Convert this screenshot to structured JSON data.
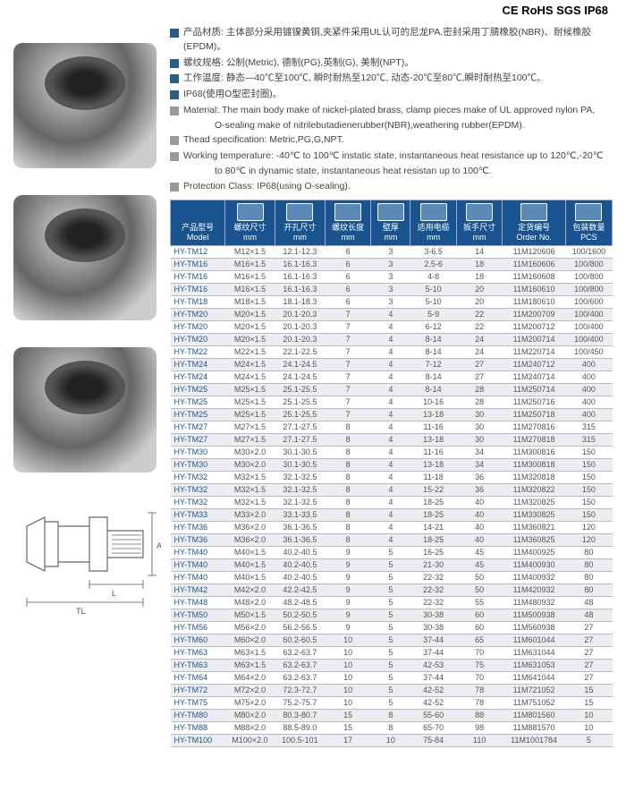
{
  "certifications": "CE  RoHS  SGS  IP68",
  "specs_cn": [
    "产品材质: 主体部分采用镀镍黄铜,夹紧件采用UL认可的尼龙PA,密封采用丁腈橡胶(NBR)、耐候橡胶(EPDM)。",
    "螺纹规格: 公制(Metric), 德制(PG),英制(G), 美制(NPT)。",
    "工作温度: 静态—40℃至100℃, 瞬时耐热至120℃, 动态-20℃至80℃,瞬时耐热至100℃。",
    "IP68(使用O型密封圈)。"
  ],
  "specs_en": [
    {
      "label": "Material:",
      "text": "The main body make of nickel-plated brass, clamp pieces make of UL approved nylon PA,",
      "cont": "O-sealing make of nitrilebutadienerubber(NBR),weathering rubber(EPDM)."
    },
    {
      "label": "Thead specification:",
      "text": "Metric,PG,G,NPT."
    },
    {
      "label": "Working temperature:",
      "text": "-40℃ to 100℃ instatic state, instantaneous heat resistance up to 120℃,-20℃",
      "cont": "to 80℃ in dynamic state, instantaneous heat resistan up to 100℃."
    },
    {
      "label": "Protection Class:",
      "text": "IP68(using O-sealing)."
    }
  ],
  "headers": [
    {
      "cn": "产品型号",
      "en": "Model"
    },
    {
      "cn": "螺纹尺寸",
      "en": "mm"
    },
    {
      "cn": "开孔尺寸",
      "en": "mm"
    },
    {
      "cn": "螺纹长度",
      "en": "mm"
    },
    {
      "cn": "壁厚",
      "en": "mm"
    },
    {
      "cn": "适用电缆",
      "en": "mm"
    },
    {
      "cn": "扳手尺寸",
      "en": "mm"
    },
    {
      "cn": "定货编号",
      "en": "Order No."
    },
    {
      "cn": "包装数量",
      "en": "PCS"
    }
  ],
  "rows": [
    [
      "HY-TM12",
      "M12×1.5",
      "12.1-12.3",
      "6",
      "3",
      "3-6.5",
      "14",
      "11M120606",
      "100/1600"
    ],
    [
      "HY-TM16",
      "M16×1.5",
      "16.1-16.3",
      "6",
      "3",
      "2.5-6",
      "18",
      "11M160606",
      "100/800"
    ],
    [
      "HY-TM16",
      "M16×1.5",
      "16.1-16.3",
      "6",
      "3",
      "4-8",
      "18",
      "11M160608",
      "100/800"
    ],
    [
      "HY-TM16",
      "M16×1.5",
      "16.1-16.3",
      "6",
      "3",
      "5-10",
      "20",
      "11M160610",
      "100/800"
    ],
    [
      "HY-TM18",
      "M18×1.5",
      "18.1-18.3",
      "6",
      "3",
      "5-10",
      "20",
      "11M180610",
      "100/600"
    ],
    [
      "HY-TM20",
      "M20×1.5",
      "20.1-20.3",
      "7",
      "4",
      "5-9",
      "22",
      "11M200709",
      "100/400"
    ],
    [
      "HY-TM20",
      "M20×1.5",
      "20.1-20.3",
      "7",
      "4",
      "6-12",
      "22",
      "11M200712",
      "100/400"
    ],
    [
      "HY-TM20",
      "M20×1.5",
      "20.1-20.3",
      "7",
      "4",
      "8-14",
      "24",
      "11M200714",
      "100/400"
    ],
    [
      "HY-TM22",
      "M22×1.5",
      "22.1-22.5",
      "7",
      "4",
      "8-14",
      "24",
      "11M220714",
      "100/450"
    ],
    [
      "HY-TM24",
      "M24×1.5",
      "24.1-24.5",
      "7",
      "4",
      "7-12",
      "27",
      "11M240712",
      "400"
    ],
    [
      "HY-TM24",
      "M24×1.5",
      "24.1-24.5",
      "7",
      "4",
      "8-14",
      "27",
      "11M240714",
      "400"
    ],
    [
      "HY-TM25",
      "M25×1.5",
      "25.1-25.5",
      "7",
      "4",
      "8-14",
      "28",
      "11M250714",
      "400"
    ],
    [
      "HY-TM25",
      "M25×1.5",
      "25.1-25.5",
      "7",
      "4",
      "10-16",
      "28",
      "11M250716",
      "400"
    ],
    [
      "HY-TM25",
      "M25×1.5",
      "25.1-25.5",
      "7",
      "4",
      "13-18",
      "30",
      "11M250718",
      "400"
    ],
    [
      "HY-TM27",
      "M27×1.5",
      "27.1-27.5",
      "8",
      "4",
      "11-16",
      "30",
      "11M270816",
      "315"
    ],
    [
      "HY-TM27",
      "M27×1.5",
      "27.1-27.5",
      "8",
      "4",
      "13-18",
      "30",
      "11M270818",
      "315"
    ],
    [
      "HY-TM30",
      "M30×2.0",
      "30.1-30.5",
      "8",
      "4",
      "11-16",
      "34",
      "11M300816",
      "150"
    ],
    [
      "HY-TM30",
      "M30×2.0",
      "30.1-30.5",
      "8",
      "4",
      "13-18",
      "34",
      "11M300818",
      "150"
    ],
    [
      "HY-TM32",
      "M32×1.5",
      "32.1-32.5",
      "8",
      "4",
      "11-18",
      "36",
      "11M320818",
      "150"
    ],
    [
      "HY-TM32",
      "M32×1.5",
      "32.1-32.5",
      "8",
      "4",
      "15-22",
      "36",
      "11M320822",
      "150"
    ],
    [
      "HY-TM32",
      "M32×1.5",
      "32.1-32.5",
      "8",
      "4",
      "18-25",
      "40",
      "11M320825",
      "150"
    ],
    [
      "HY-TM33",
      "M33×2.0",
      "33.1-33.5",
      "8",
      "4",
      "18-25",
      "40",
      "11M330825",
      "150"
    ],
    [
      "HY-TM36",
      "M36×2.0",
      "36.1-36.5",
      "8",
      "4",
      "14-21",
      "40",
      "11M360821",
      "120"
    ],
    [
      "HY-TM36",
      "M36×2.0",
      "36.1-36.5",
      "8",
      "4",
      "18-25",
      "40",
      "11M360825",
      "120"
    ],
    [
      "HY-TM40",
      "M40×1.5",
      "40.2-40.5",
      "9",
      "5",
      "16-25",
      "45",
      "11M400925",
      "80"
    ],
    [
      "HY-TM40",
      "M40×1.5",
      "40.2-40.5",
      "9",
      "5",
      "21-30",
      "45",
      "11M400930",
      "80"
    ],
    [
      "HY-TM40",
      "M40×1.5",
      "40.2-40.5",
      "9",
      "5",
      "22-32",
      "50",
      "11M400932",
      "80"
    ],
    [
      "HY-TM42",
      "M42×2.0",
      "42.2-42.5",
      "9",
      "5",
      "22-32",
      "50",
      "11M420932",
      "80"
    ],
    [
      "HY-TM48",
      "M48×2.0",
      "48.2-48.5",
      "9",
      "5",
      "22-32",
      "55",
      "11M480932",
      "48"
    ],
    [
      "HY-TM50",
      "M50×1.5",
      "50.2-50.5",
      "9",
      "5",
      "30-38",
      "60",
      "11M500938",
      "48"
    ],
    [
      "HY-TM56",
      "M56×2.0",
      "56.2-56.5",
      "9",
      "5",
      "30-38",
      "60",
      "11M560938",
      "27"
    ],
    [
      "HY-TM60",
      "M60×2.0",
      "60.2-60.5",
      "10",
      "5",
      "37-44",
      "65",
      "11M601044",
      "27"
    ],
    [
      "HY-TM63",
      "M63×1.5",
      "63.2-63.7",
      "10",
      "5",
      "37-44",
      "70",
      "11M631044",
      "27"
    ],
    [
      "HY-TM63",
      "M63×1.5",
      "63.2-63.7",
      "10",
      "5",
      "42-53",
      "75",
      "11M631053",
      "27"
    ],
    [
      "HY-TM64",
      "M64×2.0",
      "63.2-63.7",
      "10",
      "5",
      "37-44",
      "70",
      "11M641044",
      "27"
    ],
    [
      "HY-TM72",
      "M72×2.0",
      "72.3-72.7",
      "10",
      "5",
      "42-52",
      "78",
      "11M721052",
      "15"
    ],
    [
      "HY-TM75",
      "M75×2.0",
      "75.2-75.7",
      "10",
      "5",
      "42-52",
      "78",
      "11M751052",
      "15"
    ],
    [
      "HY-TM80",
      "M80×2.0",
      "80.3-80.7",
      "15",
      "8",
      "55-60",
      "88",
      "11M801560",
      "10"
    ],
    [
      "HY-TM88",
      "M88×2.0",
      "88.5-89.0",
      "15",
      "8",
      "65-70",
      "98",
      "11M881570",
      "10"
    ],
    [
      "HY-TM100",
      "M100×2.0",
      "100.5-101",
      "17",
      "10",
      "75-84",
      "110",
      "11M1001784",
      "5"
    ]
  ],
  "dim_labels": {
    "ag": "AG",
    "l": "L",
    "tl": "TL"
  },
  "colors": {
    "header_bg": "#1a5490",
    "bullet_blue": "#2a5c8a",
    "bullet_gray": "#999999"
  }
}
